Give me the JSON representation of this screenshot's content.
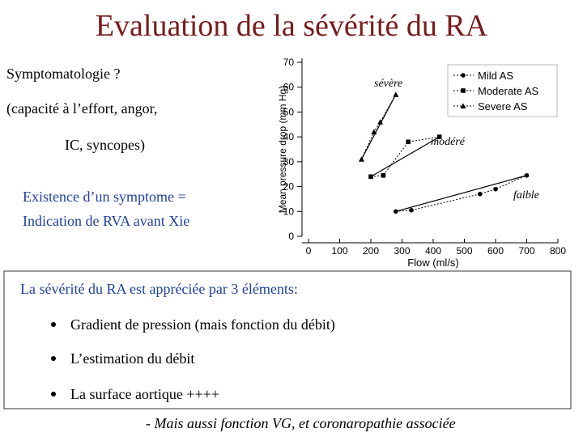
{
  "title": "Evaluation de la sévérité du RA",
  "left_text": [
    "Symptomatologie ?",
    "(capacité à l’effort, angor,",
    "IC, syncopes)"
  ],
  "highlight_text": [
    "Existence d’un symptome =",
    "Indication de RVA avant Xie"
  ],
  "chart_data": {
    "type": "scatter",
    "xlabel": "Flow (ml/s)",
    "ylabel": "Mean pressure drop (mm Hg)",
    "xlim": [
      0,
      800
    ],
    "xticks": [
      0,
      100,
      200,
      300,
      400,
      500,
      600,
      700,
      800
    ],
    "ylim": [
      0,
      70
    ],
    "yticks": [
      0,
      10,
      20,
      30,
      40,
      50,
      60,
      70
    ],
    "annotations": [
      "sévère",
      "modéré",
      "faible"
    ],
    "series": [
      {
        "name": "Mild AS",
        "color": "#000000",
        "marker": "circle",
        "x": [
          280,
          330,
          550,
          600,
          700
        ],
        "values": [
          10,
          10.5,
          17,
          19,
          24.5
        ]
      },
      {
        "name": "Moderate AS",
        "color": "#000000",
        "marker": "square",
        "x": [
          200,
          240,
          320,
          420
        ],
        "values": [
          24,
          24.5,
          38,
          40
        ]
      },
      {
        "name": "Severe AS",
        "color": "#000000",
        "marker": "triangle",
        "x": [
          170,
          210,
          230,
          280
        ],
        "values": [
          31,
          42,
          46,
          57
        ]
      }
    ]
  },
  "box": {
    "heading": "La sévérité du RA est appréciée par 3 éléments:",
    "bullets": [
      "Gradient de pression (mais fonction du débit)",
      "L’estimation du débit",
      "La surface aortique ++++"
    ]
  },
  "footer": "- Mais aussi fonction VG, et coronaropathie associée"
}
